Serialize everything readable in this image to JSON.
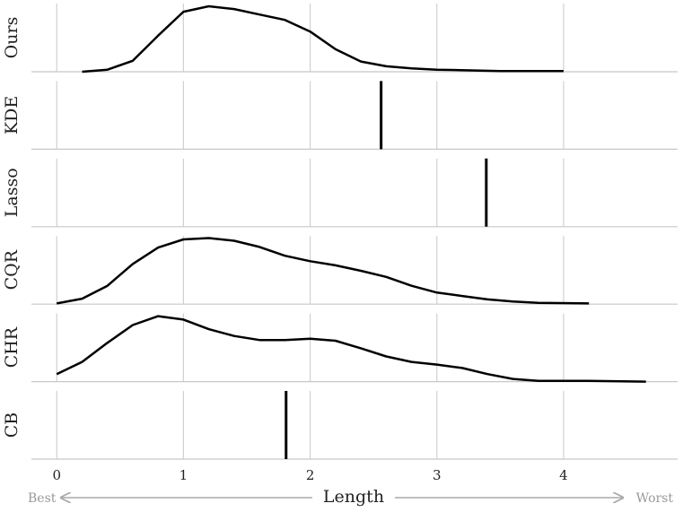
{
  "chart_data": {
    "type": "ridgeline",
    "xlabel": "Length",
    "annotations": {
      "left": "Best",
      "right": "Worst"
    },
    "xlim": [
      -0.2,
      4.9
    ],
    "xticks": [
      0,
      1,
      2,
      3,
      4
    ],
    "ylim": [
      0,
      1
    ],
    "grid": true,
    "color": "#000000",
    "series": [
      {
        "name": "Ours",
        "x": [
          0.2,
          0.4,
          0.6,
          0.8,
          1.0,
          1.2,
          1.4,
          1.6,
          1.8,
          2.0,
          2.2,
          2.4,
          2.6,
          2.8,
          3.0,
          3.5,
          4.0
        ],
        "values": [
          0,
          0.03,
          0.16,
          0.53,
          0.88,
          0.96,
          0.92,
          0.84,
          0.76,
          0.59,
          0.33,
          0.15,
          0.08,
          0.05,
          0.03,
          0.01,
          0.01
        ]
      },
      {
        "name": "KDE",
        "value": 2.56
      },
      {
        "name": "Lasso",
        "value": 3.39
      },
      {
        "name": "CQR",
        "x": [
          0,
          0.2,
          0.4,
          0.6,
          0.8,
          1.0,
          1.2,
          1.4,
          1.6,
          1.8,
          2.0,
          2.2,
          2.4,
          2.6,
          2.8,
          3.0,
          3.2,
          3.4,
          3.6,
          3.8,
          4.2
        ],
        "values": [
          0.01,
          0.08,
          0.27,
          0.59,
          0.83,
          0.95,
          0.97,
          0.93,
          0.84,
          0.71,
          0.63,
          0.57,
          0.49,
          0.4,
          0.27,
          0.17,
          0.12,
          0.07,
          0.04,
          0.02,
          0.01
        ]
      },
      {
        "name": "CHR",
        "x": [
          0,
          0.2,
          0.4,
          0.6,
          0.8,
          1.0,
          1.2,
          1.4,
          1.6,
          1.8,
          2.0,
          2.2,
          2.4,
          2.6,
          2.8,
          3.0,
          3.2,
          3.4,
          3.6,
          3.8,
          4.2,
          4.65
        ],
        "values": [
          0.11,
          0.29,
          0.57,
          0.83,
          0.96,
          0.91,
          0.77,
          0.67,
          0.61,
          0.61,
          0.63,
          0.6,
          0.49,
          0.37,
          0.29,
          0.25,
          0.2,
          0.11,
          0.04,
          0.01,
          0.01,
          0
        ]
      },
      {
        "name": "CB",
        "value": 1.81
      }
    ]
  }
}
